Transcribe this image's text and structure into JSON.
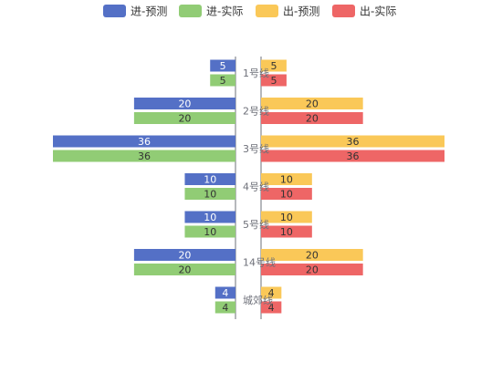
{
  "chart_data": {
    "type": "bar",
    "orientation": "horizontal-butterfly",
    "categories": [
      "1号线",
      "2号线",
      "3号线",
      "4号线",
      "5号线",
      "14号线",
      "城郊线"
    ],
    "series": [
      {
        "name": "进-预测",
        "side": "left",
        "color": "#5470c6",
        "values": [
          5,
          20,
          36,
          10,
          10,
          20,
          4
        ]
      },
      {
        "name": "进-实际",
        "side": "left",
        "color": "#91cc75",
        "values": [
          5,
          20,
          36,
          10,
          10,
          20,
          4
        ]
      },
      {
        "name": "出-预测",
        "side": "right",
        "color": "#fac858",
        "values": [
          5,
          20,
          36,
          10,
          10,
          20,
          4
        ]
      },
      {
        "name": "出-实际",
        "side": "right",
        "color": "#ee6666",
        "values": [
          5,
          20,
          36,
          10,
          10,
          20,
          4
        ]
      }
    ],
    "xlim": [
      0,
      36
    ],
    "legend_position": "top-center",
    "grid": false
  }
}
